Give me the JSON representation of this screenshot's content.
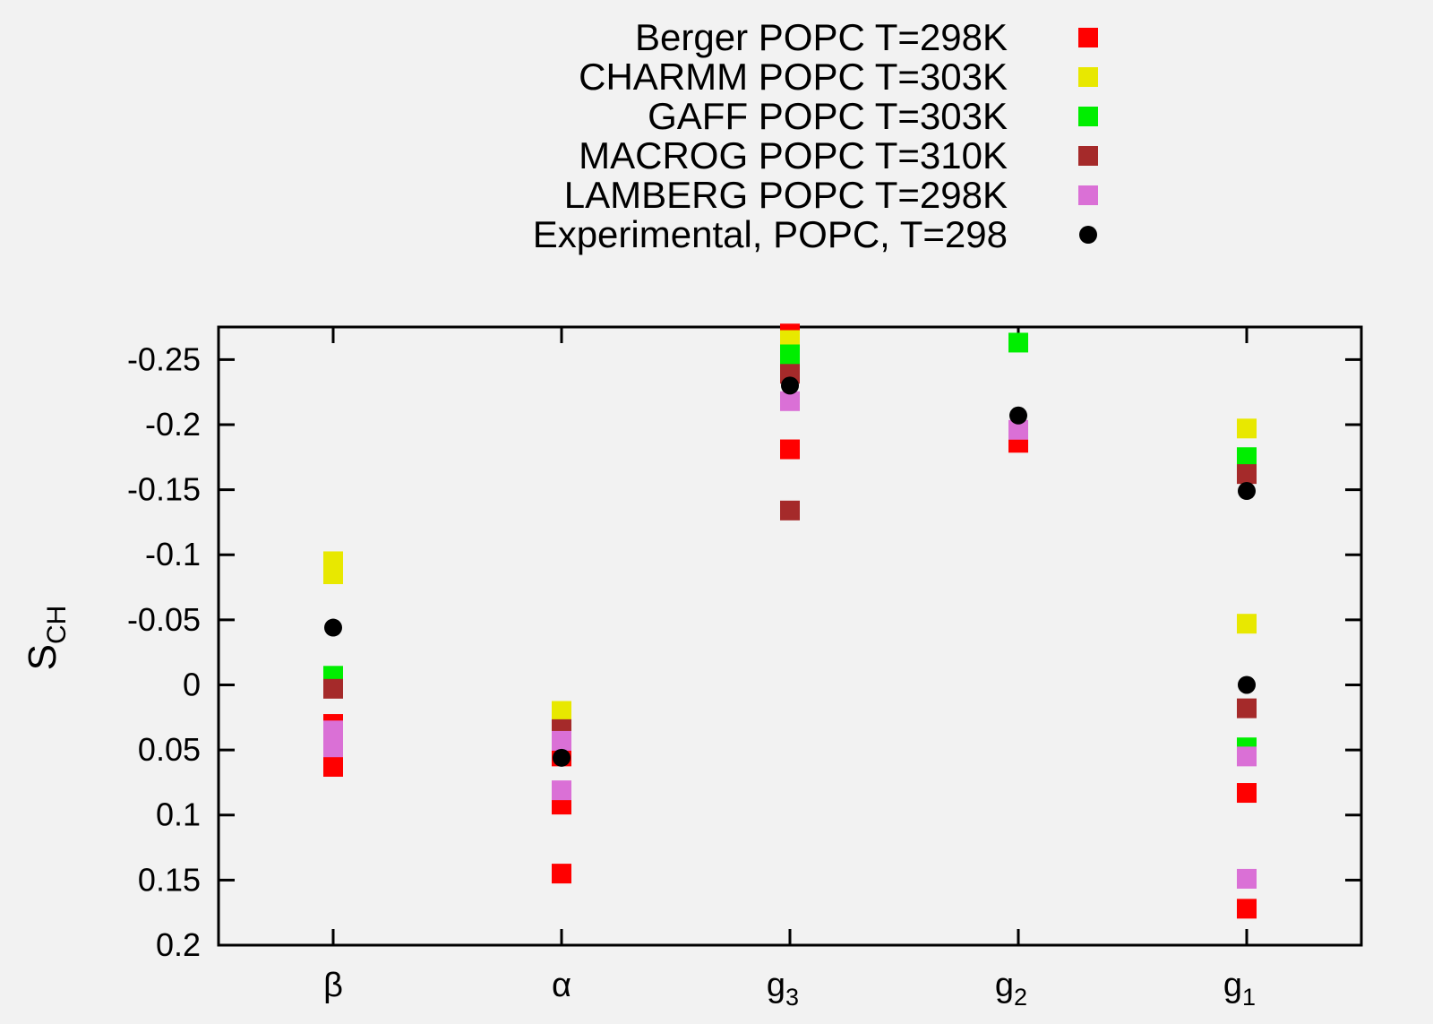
{
  "chart_data": {
    "type": "scatter",
    "ylabel": "S",
    "ylabel_sub": "CH",
    "xlabel": "",
    "ylim": [
      0.2,
      -0.275
    ],
    "y_axis_inverted": true,
    "y_ticks": [
      {
        "value": -0.25,
        "label": "-0.25"
      },
      {
        "value": -0.2,
        "label": "-0.2"
      },
      {
        "value": -0.15,
        "label": "-0.15"
      },
      {
        "value": -0.1,
        "label": "-0.1"
      },
      {
        "value": -0.05,
        "label": "-0.05"
      },
      {
        "value": 0,
        "label": "0"
      },
      {
        "value": 0.05,
        "label": "0.05"
      },
      {
        "value": 0.1,
        "label": "0.1"
      },
      {
        "value": 0.15,
        "label": "0.15"
      },
      {
        "value": 0.2,
        "label": "0.2"
      }
    ],
    "categories": [
      {
        "base": "β",
        "sub": ""
      },
      {
        "base": "α",
        "sub": ""
      },
      {
        "base": "g",
        "sub": "3"
      },
      {
        "base": "g",
        "sub": "2"
      },
      {
        "base": "g",
        "sub": "1"
      }
    ],
    "grid": false,
    "legend_position": "top-center",
    "series": [
      {
        "name": "Berger POPC T=298K",
        "marker": "square",
        "color": "#ff0000",
        "points": [
          [
            0,
            0.03
          ],
          [
            0,
            0.063
          ],
          [
            1,
            0.055
          ],
          [
            1,
            0.092
          ],
          [
            1,
            0.145
          ],
          [
            2,
            -0.27
          ],
          [
            2,
            -0.181
          ],
          [
            3,
            -0.186
          ],
          [
            4,
            0.083
          ],
          [
            4,
            0.172
          ]
        ]
      },
      {
        "name": "CHARMM POPC T=303K",
        "marker": "square",
        "color": "#e8e800",
        "points": [
          [
            0,
            -0.095
          ],
          [
            0,
            -0.085
          ],
          [
            1,
            0.02
          ],
          [
            2,
            -0.265
          ],
          [
            4,
            -0.197
          ],
          [
            4,
            -0.047
          ]
        ]
      },
      {
        "name": "GAFF POPC T=303K",
        "marker": "square",
        "color": "#00ee00",
        "points": [
          [
            0,
            -0.007
          ],
          [
            2,
            -0.254
          ],
          [
            3,
            -0.263
          ],
          [
            4,
            -0.175
          ],
          [
            4,
            0.048
          ]
        ]
      },
      {
        "name": "MACROG POPC T=310K",
        "marker": "square",
        "color": "#a52a2a",
        "points": [
          [
            0,
            0.003
          ],
          [
            1,
            0.034
          ],
          [
            2,
            -0.239
          ],
          [
            2,
            -0.134
          ],
          [
            4,
            -0.162
          ],
          [
            4,
            0.018
          ]
        ]
      },
      {
        "name": "LAMBERG POPC T=298K",
        "marker": "square",
        "color": "#da70d6",
        "points": [
          [
            0,
            0.035
          ],
          [
            0,
            0.048
          ],
          [
            1,
            0.043
          ],
          [
            1,
            0.081
          ],
          [
            2,
            -0.218
          ],
          [
            3,
            -0.196
          ],
          [
            4,
            0.055
          ],
          [
            4,
            0.149
          ]
        ]
      },
      {
        "name": "Experimental, POPC, T=298",
        "marker": "circle",
        "color": "#000000",
        "points": [
          [
            0,
            -0.044
          ],
          [
            1,
            0.056
          ],
          [
            2,
            -0.23
          ],
          [
            3,
            -0.207
          ],
          [
            4,
            -0.149
          ],
          [
            4,
            0.0
          ]
        ]
      }
    ]
  }
}
